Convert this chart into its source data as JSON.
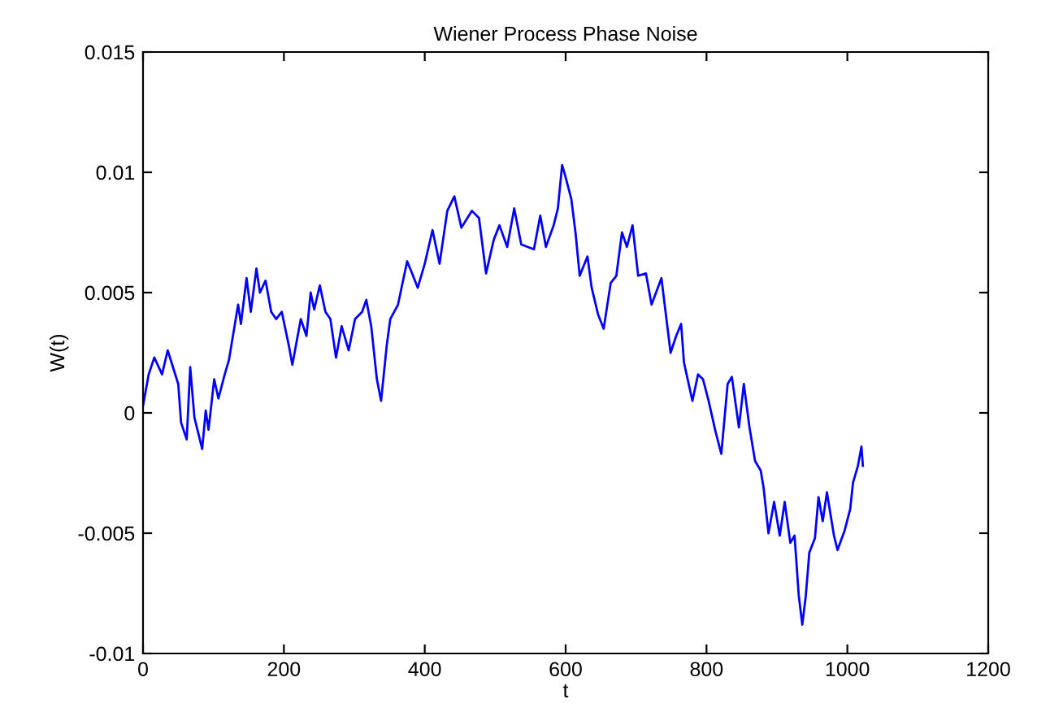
{
  "chart_data": {
    "type": "line",
    "title": "Wiener Process Phase Noise",
    "xlabel": "t",
    "ylabel": "W(t)",
    "x": [
      0,
      8,
      16,
      27,
      35,
      50,
      54,
      62,
      67,
      73,
      84,
      89,
      93,
      101,
      107,
      116,
      122,
      135,
      139,
      147,
      153,
      161,
      166,
      174,
      182,
      189,
      197,
      207,
      212,
      224,
      232,
      238,
      243,
      251,
      259,
      266,
      274,
      282,
      292,
      301,
      311,
      317,
      324,
      332,
      338,
      346,
      351,
      362,
      367,
      375,
      382,
      390,
      400,
      411,
      421,
      432,
      442,
      452,
      467,
      477,
      487,
      498,
      506,
      517,
      527,
      537,
      555,
      564,
      572,
      583,
      589,
      595,
      599,
      608,
      614,
      620,
      631,
      637,
      646,
      654,
      664,
      672,
      680,
      687,
      695,
      703,
      714,
      722,
      736,
      749,
      757,
      764,
      768,
      780,
      788,
      795,
      803,
      813,
      821,
      830,
      836,
      846,
      853,
      861,
      869,
      877,
      881,
      888,
      896,
      904,
      911,
      919,
      925,
      931,
      936,
      941,
      946,
      954,
      959,
      965,
      971,
      981,
      986,
      996,
      1004,
      1008,
      1015,
      1020,
      1022
    ],
    "series": [
      {
        "color": "#0000ff",
        "values": [
          0.0003,
          0.0016,
          0.0023,
          0.0016,
          0.0026,
          0.0012,
          -0.0004,
          -0.0011,
          0.0019,
          -0.0002,
          -0.0015,
          0.0001,
          -0.0007,
          0.0014,
          0.0006,
          0.0016,
          0.0022,
          0.0045,
          0.0037,
          0.0056,
          0.0042,
          0.006,
          0.005,
          0.0055,
          0.0042,
          0.0039,
          0.0042,
          0.0028,
          0.002,
          0.0039,
          0.0032,
          0.005,
          0.0043,
          0.0053,
          0.0042,
          0.0039,
          0.0023,
          0.0036,
          0.0026,
          0.0039,
          0.0042,
          0.0047,
          0.0036,
          0.0014,
          0.0005,
          0.0028,
          0.0039,
          0.0045,
          0.0052,
          0.0063,
          0.0058,
          0.0052,
          0.0062,
          0.0076,
          0.0062,
          0.0084,
          0.009,
          0.0077,
          0.0084,
          0.0081,
          0.0058,
          0.0072,
          0.0078,
          0.0069,
          0.0085,
          0.007,
          0.0068,
          0.0082,
          0.0069,
          0.0078,
          0.0085,
          0.0103,
          0.0099,
          0.0089,
          0.0075,
          0.0057,
          0.0065,
          0.0052,
          0.0041,
          0.0035,
          0.0054,
          0.0057,
          0.0075,
          0.0069,
          0.0078,
          0.0057,
          0.0058,
          0.0045,
          0.0056,
          0.0025,
          0.0032,
          0.0037,
          0.0021,
          0.0005,
          0.0016,
          0.0014,
          0.0005,
          -0.0008,
          -0.0017,
          0.0012,
          0.0015,
          -0.0006,
          0.0012,
          -0.0006,
          -0.002,
          -0.0024,
          -0.0031,
          -0.005,
          -0.0037,
          -0.0051,
          -0.0037,
          -0.0054,
          -0.0051,
          -0.0076,
          -0.0088,
          -0.0076,
          -0.0058,
          -0.0052,
          -0.0035,
          -0.0045,
          -0.0033,
          -0.0051,
          -0.0057,
          -0.0049,
          -0.004,
          -0.0029,
          -0.0022,
          -0.0014,
          -0.0022
        ]
      }
    ],
    "xlim": [
      0,
      1200
    ],
    "xticks": [
      0,
      200,
      400,
      600,
      800,
      1000,
      1200
    ],
    "ylim": [
      -0.01,
      0.015
    ],
    "yticks": [
      {
        "value": -0.01,
        "label": "-0.01"
      },
      {
        "value": -0.005,
        "label": "-0.005"
      },
      0,
      {
        "value": 0.005,
        "label": "0.005"
      },
      {
        "value": 0.01,
        "label": "0.01"
      },
      {
        "value": 0.015,
        "label": "0.015"
      }
    ],
    "grid": false,
    "line_style": "solid"
  }
}
